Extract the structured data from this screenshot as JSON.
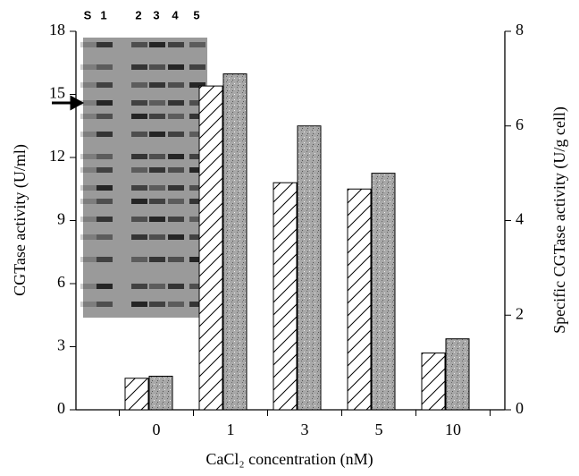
{
  "chart_data": {
    "type": "bar",
    "categories": [
      "0",
      "1",
      "3",
      "5",
      "10"
    ],
    "series": [
      {
        "color": "#000000",
        "values": [
          1.5,
          15.4,
          10.8,
          10.5,
          2.7
        ]
      },
      {
        "color": "#a8a8a8",
        "axis": "y2",
        "values": [
          0.71,
          7.1,
          6.0,
          5.0,
          1.5
        ]
      }
    ],
    "ylim": [
      0,
      18
    ],
    "yticks": [
      0,
      3,
      6,
      9,
      12,
      15,
      18
    ],
    "y2lim": [
      0,
      8
    ],
    "y2ticks": [
      0,
      2,
      4,
      6,
      8
    ],
    "y_label": "CGTase activity (U/ml)",
    "y2_label": "Specific CGTase activity (U/g cell)",
    "x_label": "CaCl₂ concentration (nM)",
    "inset_lane_labels": [
      "S",
      "1",
      "2",
      "3",
      "4",
      "5"
    ]
  }
}
